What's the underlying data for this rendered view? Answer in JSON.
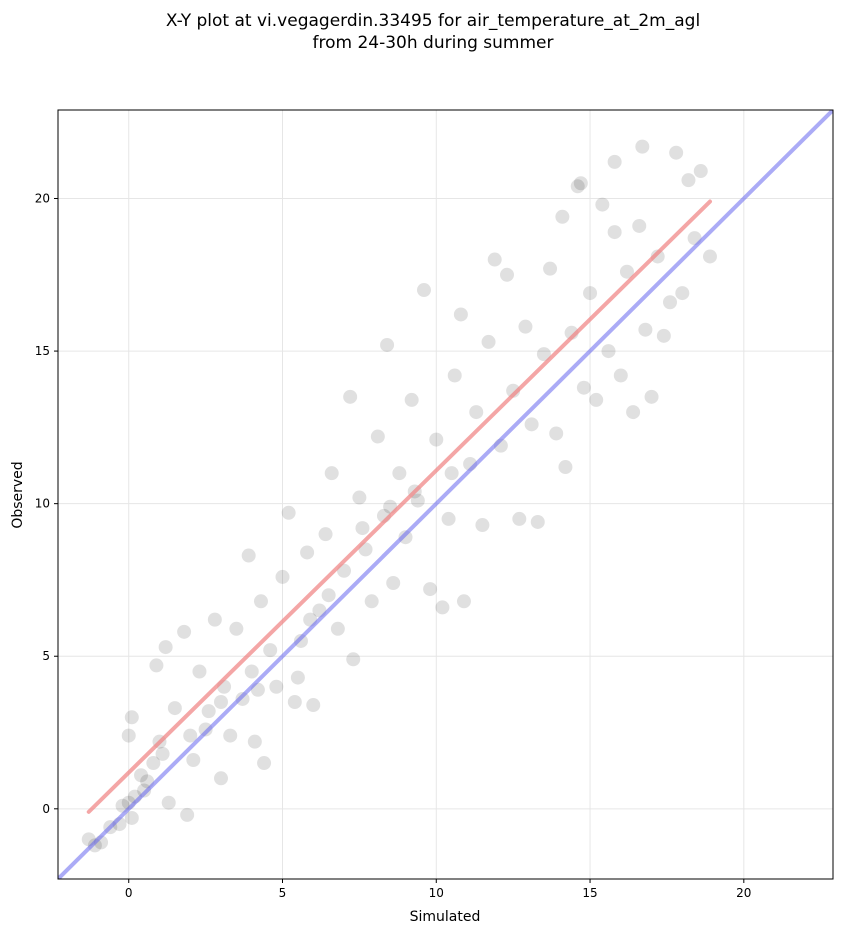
{
  "chart_data": {
    "type": "scatter",
    "title": "X-Y plot at vi.vegagerdin.33495 for air_temperature_at_2m_agl",
    "subtitle": "from 24-30h during summer",
    "xlabel": "Simulated",
    "ylabel": "Observed",
    "xlim": [
      -2.3,
      22.9
    ],
    "ylim": [
      -2.3,
      22.9
    ],
    "xticks": [
      0,
      5,
      10,
      15,
      20
    ],
    "yticks": [
      0,
      5,
      10,
      15,
      20
    ],
    "grid": true,
    "colors": {
      "points": "#000000",
      "fit_line": "#f08080",
      "identity_line": "#6666ee"
    },
    "fit_line": {
      "x": [
        -1.3,
        18.9
      ],
      "y": [
        -0.1,
        19.9
      ]
    },
    "identity_line": {
      "x": [
        -2.3,
        22.9
      ],
      "y": [
        -2.3,
        22.9
      ]
    },
    "points": [
      {
        "x": -1.3,
        "y": -1.0
      },
      {
        "x": -1.1,
        "y": -1.2
      },
      {
        "x": -0.9,
        "y": -1.1
      },
      {
        "x": -0.6,
        "y": -0.6
      },
      {
        "x": -0.3,
        "y": -0.5
      },
      {
        "x": -0.2,
        "y": 0.1
      },
      {
        "x": 0.0,
        "y": 0.2
      },
      {
        "x": 0.1,
        "y": -0.3
      },
      {
        "x": 0.2,
        "y": 0.4
      },
      {
        "x": 0.1,
        "y": 3.0
      },
      {
        "x": 0.0,
        "y": 2.4
      },
      {
        "x": 0.4,
        "y": 1.1
      },
      {
        "x": 0.6,
        "y": 0.9
      },
      {
        "x": 0.8,
        "y": 1.5
      },
      {
        "x": 0.9,
        "y": 4.7
      },
      {
        "x": 1.0,
        "y": 2.2
      },
      {
        "x": 1.2,
        "y": 5.3
      },
      {
        "x": 1.3,
        "y": 0.2
      },
      {
        "x": 1.5,
        "y": 3.3
      },
      {
        "x": 1.8,
        "y": 5.8
      },
      {
        "x": 1.9,
        "y": -0.2
      },
      {
        "x": 2.1,
        "y": 1.6
      },
      {
        "x": 2.3,
        "y": 4.5
      },
      {
        "x": 2.5,
        "y": 2.6
      },
      {
        "x": 2.6,
        "y": 3.2
      },
      {
        "x": 2.8,
        "y": 6.2
      },
      {
        "x": 3.0,
        "y": 1.0
      },
      {
        "x": 3.1,
        "y": 4.0
      },
      {
        "x": 3.3,
        "y": 2.4
      },
      {
        "x": 3.5,
        "y": 5.9
      },
      {
        "x": 3.7,
        "y": 3.6
      },
      {
        "x": 3.9,
        "y": 8.3
      },
      {
        "x": 4.0,
        "y": 4.5
      },
      {
        "x": 4.1,
        "y": 2.2
      },
      {
        "x": 4.3,
        "y": 6.8
      },
      {
        "x": 4.4,
        "y": 1.5
      },
      {
        "x": 4.6,
        "y": 5.2
      },
      {
        "x": 4.8,
        "y": 4.0
      },
      {
        "x": 5.0,
        "y": 7.6
      },
      {
        "x": 5.2,
        "y": 9.7
      },
      {
        "x": 5.4,
        "y": 3.5
      },
      {
        "x": 5.6,
        "y": 5.5
      },
      {
        "x": 5.8,
        "y": 8.4
      },
      {
        "x": 6.0,
        "y": 3.4
      },
      {
        "x": 6.2,
        "y": 6.5
      },
      {
        "x": 6.4,
        "y": 9.0
      },
      {
        "x": 6.6,
        "y": 11.0
      },
      {
        "x": 6.8,
        "y": 5.9
      },
      {
        "x": 7.0,
        "y": 7.8
      },
      {
        "x": 7.2,
        "y": 13.5
      },
      {
        "x": 7.3,
        "y": 4.9
      },
      {
        "x": 7.5,
        "y": 10.2
      },
      {
        "x": 7.7,
        "y": 8.5
      },
      {
        "x": 7.9,
        "y": 6.8
      },
      {
        "x": 8.1,
        "y": 12.2
      },
      {
        "x": 8.3,
        "y": 9.6
      },
      {
        "x": 8.4,
        "y": 15.2
      },
      {
        "x": 8.6,
        "y": 7.4
      },
      {
        "x": 8.8,
        "y": 11.0
      },
      {
        "x": 9.0,
        "y": 8.9
      },
      {
        "x": 9.2,
        "y": 13.4
      },
      {
        "x": 9.4,
        "y": 10.1
      },
      {
        "x": 9.6,
        "y": 17.0
      },
      {
        "x": 9.8,
        "y": 7.2
      },
      {
        "x": 10.0,
        "y": 12.1
      },
      {
        "x": 10.2,
        "y": 6.6
      },
      {
        "x": 10.4,
        "y": 9.5
      },
      {
        "x": 10.6,
        "y": 14.2
      },
      {
        "x": 10.8,
        "y": 16.2
      },
      {
        "x": 10.9,
        "y": 6.8
      },
      {
        "x": 11.1,
        "y": 11.3
      },
      {
        "x": 11.3,
        "y": 13.0
      },
      {
        "x": 11.5,
        "y": 9.3
      },
      {
        "x": 11.7,
        "y": 15.3
      },
      {
        "x": 11.9,
        "y": 18.0
      },
      {
        "x": 12.1,
        "y": 11.9
      },
      {
        "x": 12.3,
        "y": 17.5
      },
      {
        "x": 12.5,
        "y": 13.7
      },
      {
        "x": 12.7,
        "y": 9.5
      },
      {
        "x": 12.9,
        "y": 15.8
      },
      {
        "x": 13.1,
        "y": 12.6
      },
      {
        "x": 13.3,
        "y": 9.4
      },
      {
        "x": 13.5,
        "y": 14.9
      },
      {
        "x": 13.7,
        "y": 17.7
      },
      {
        "x": 13.9,
        "y": 12.3
      },
      {
        "x": 14.1,
        "y": 19.4
      },
      {
        "x": 14.2,
        "y": 11.2
      },
      {
        "x": 14.4,
        "y": 15.6
      },
      {
        "x": 14.6,
        "y": 20.4
      },
      {
        "x": 14.8,
        "y": 13.8
      },
      {
        "x": 15.0,
        "y": 16.9
      },
      {
        "x": 15.2,
        "y": 13.4
      },
      {
        "x": 15.4,
        "y": 19.8
      },
      {
        "x": 15.6,
        "y": 15.0
      },
      {
        "x": 15.8,
        "y": 18.9
      },
      {
        "x": 16.0,
        "y": 14.2
      },
      {
        "x": 16.2,
        "y": 17.6
      },
      {
        "x": 16.4,
        "y": 13.0
      },
      {
        "x": 16.6,
        "y": 19.1
      },
      {
        "x": 16.8,
        "y": 15.7
      },
      {
        "x": 17.0,
        "y": 13.5
      },
      {
        "x": 17.2,
        "y": 18.1
      },
      {
        "x": 17.4,
        "y": 15.5
      },
      {
        "x": 17.6,
        "y": 16.6
      },
      {
        "x": 17.8,
        "y": 21.5
      },
      {
        "x": 18.0,
        "y": 16.9
      },
      {
        "x": 18.2,
        "y": 20.6
      },
      {
        "x": 18.4,
        "y": 18.7
      },
      {
        "x": 18.6,
        "y": 20.9
      },
      {
        "x": 18.9,
        "y": 18.1
      },
      {
        "x": 16.7,
        "y": 21.7
      },
      {
        "x": 15.8,
        "y": 21.2
      },
      {
        "x": 14.7,
        "y": 20.5
      },
      {
        "x": 5.5,
        "y": 4.3
      },
      {
        "x": 4.2,
        "y": 3.9
      },
      {
        "x": 6.5,
        "y": 7.0
      },
      {
        "x": 7.6,
        "y": 9.2
      },
      {
        "x": 8.5,
        "y": 9.9
      },
      {
        "x": 9.3,
        "y": 10.4
      },
      {
        "x": 10.5,
        "y": 11.0
      },
      {
        "x": 3.0,
        "y": 3.5
      },
      {
        "x": 2.0,
        "y": 2.4
      },
      {
        "x": 1.1,
        "y": 1.8
      },
      {
        "x": 0.5,
        "y": 0.6
      },
      {
        "x": 5.9,
        "y": 6.2
      }
    ]
  }
}
